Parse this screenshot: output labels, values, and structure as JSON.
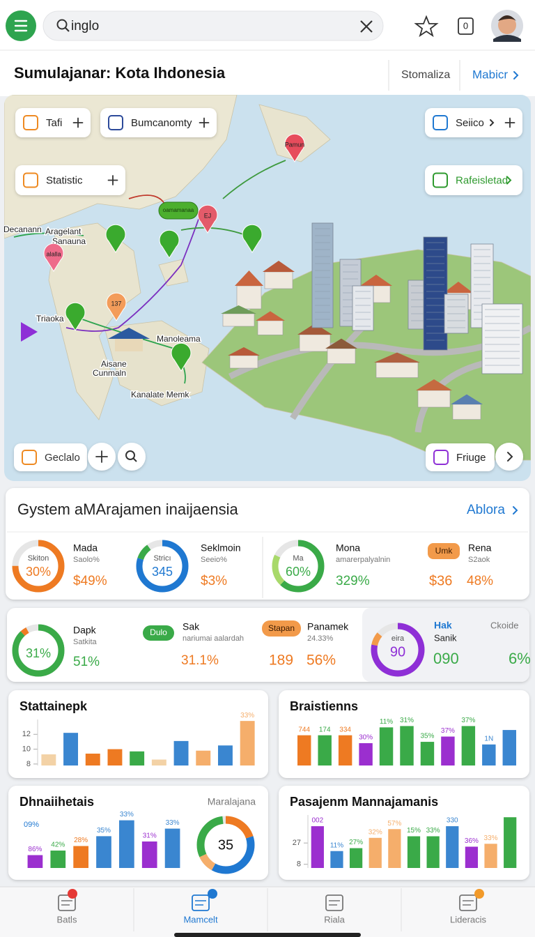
{
  "top_bar": {
    "search": "inglo",
    "badge": "0"
  },
  "header": {
    "title": "Sumulajanar: Kota Ihdonesia",
    "link1": "Stomaliza",
    "link2": "Mabicr"
  },
  "map": {
    "chips": [
      "Tafi",
      "Bumcanomty",
      "Statistic",
      "Seiico",
      "Rafeisletad",
      "Geclalo",
      "Friuge"
    ],
    "places": [
      "Decanann",
      "Aragelant",
      "Sanauna",
      "Triaoka",
      "Manoleama",
      "Aisane",
      "Cunmaln",
      "Kanalate Memk"
    ],
    "pins": [
      "Pamun",
      "EJ",
      "137",
      "alalla",
      "oamamanaa"
    ]
  },
  "system": {
    "title": "Gystem aMArajamen inaijaensia",
    "link": "Ablora"
  },
  "stats": {
    "row1": [
      {
        "ring_label": "Skiton",
        "ring_value": "30%",
        "name": "Mada",
        "sub": "Saolo%",
        "value": "$49%"
      },
      {
        "ring_label": "Stricı",
        "ring_value": "345",
        "name": "Seklmoin",
        "sub": "Seeio%",
        "value": "$3%"
      },
      {
        "ring_label": "Ma",
        "ring_value": "60%",
        "name": "Mona",
        "sub": "amarerpalyalnin",
        "value": "329%"
      },
      {
        "badge": "Umk",
        "name": "Rena",
        "sub": "S2aok",
        "value": "$36",
        "value2": "48%"
      }
    ],
    "row2": [
      {
        "ring_value": "31%",
        "name": "Dapk",
        "sub": "Satkita",
        "value": "51%"
      },
      {
        "badge": "Dulo",
        "name": "Sak",
        "sub": "nariumai aalardah",
        "value": "31.1%"
      },
      {
        "badge": "Stapan",
        "name": "Panamek",
        "sub": "24.33%",
        "value": "189",
        "value2": "56%"
      },
      {
        "ring_label": "eira",
        "ring_value": "90",
        "name": "Hak",
        "sub": "Sanik",
        "extra": "Ckoide",
        "value": "090",
        "value2": "6%"
      }
    ]
  },
  "chart_data": [
    {
      "type": "bar",
      "title": "Stattainepk",
      "ylim": [
        7.8,
        14
      ],
      "yticks": [
        8,
        10,
        12
      ],
      "values": [
        9.3,
        12.2,
        9.4,
        10.0,
        9.7,
        8.6,
        11.1,
        9.8,
        10.5,
        13.8
      ],
      "colors": [
        "#f3d2a6",
        "#3a86d0",
        "#ee7a22",
        "#ee7a22",
        "#3aaa48",
        "#f3d2a6",
        "#3a86d0",
        "#f5ae6b",
        "#3a86d0",
        "#f5ae6b"
      ],
      "bar_labels": [
        null,
        null,
        null,
        null,
        null,
        null,
        null,
        null,
        null,
        "33%"
      ]
    },
    {
      "type": "bar",
      "title": "Braistienns",
      "ylim": [
        0,
        70
      ],
      "values": [
        46,
        46,
        46,
        34,
        58,
        60,
        36,
        44,
        60,
        32,
        54
      ],
      "colors": [
        "#ee7a22",
        "#3aaa48",
        "#ee7a22",
        "#9b2fcf",
        "#3aaa48",
        "#3aaa48",
        "#3aaa48",
        "#9b2fcf",
        "#3aaa48",
        "#3a86d0",
        "#3a86d0"
      ],
      "bar_labels": [
        "744",
        "174",
        "334",
        "30%",
        "11%",
        "31%",
        "35%",
        "37%",
        "37%",
        "1N",
        null
      ]
    },
    {
      "type": "bar",
      "title": "Dhnaiihetais",
      "ylim": [
        0,
        70
      ],
      "values": [
        17,
        23,
        29,
        42,
        63,
        35,
        52
      ],
      "colors": [
        "#9b2fcf",
        "#3aaa48",
        "#ee7a22",
        "#3a86d0",
        "#3a86d0",
        "#9b2fcf",
        "#3a86d0"
      ],
      "bar_labels": [
        "86%",
        "42%",
        "28%",
        "35%",
        "33%",
        "31%",
        "33%"
      ],
      "annotations": [
        "09%"
      ]
    },
    {
      "type": "bar",
      "title": "Pasajenm Mannajamanis",
      "ylim": [
        4.7,
        52
      ],
      "yticks": [
        8,
        27
      ],
      "values": [
        42,
        19.8,
        22.4,
        31.6,
        39.4,
        33,
        33,
        42,
        23.7,
        26.3,
        50
      ],
      "colors": [
        "#9b2fcf",
        "#3a86d0",
        "#3aaa48",
        "#f5ae6b",
        "#f5ae6b",
        "#3aaa48",
        "#3aaa48",
        "#3a86d0",
        "#9b2fcf",
        "#f5ae6b",
        "#3aaa48"
      ],
      "bar_labels": [
        "002",
        "11%",
        "27%",
        "32%",
        "57%",
        "15%",
        "33%",
        "330",
        "36%",
        "33%",
        null
      ]
    }
  ],
  "mini_donut": {
    "label": "Maralajana",
    "center": "35"
  },
  "nav": [
    "Batls",
    "Mamcelt",
    "Riala",
    "Lideracis"
  ]
}
